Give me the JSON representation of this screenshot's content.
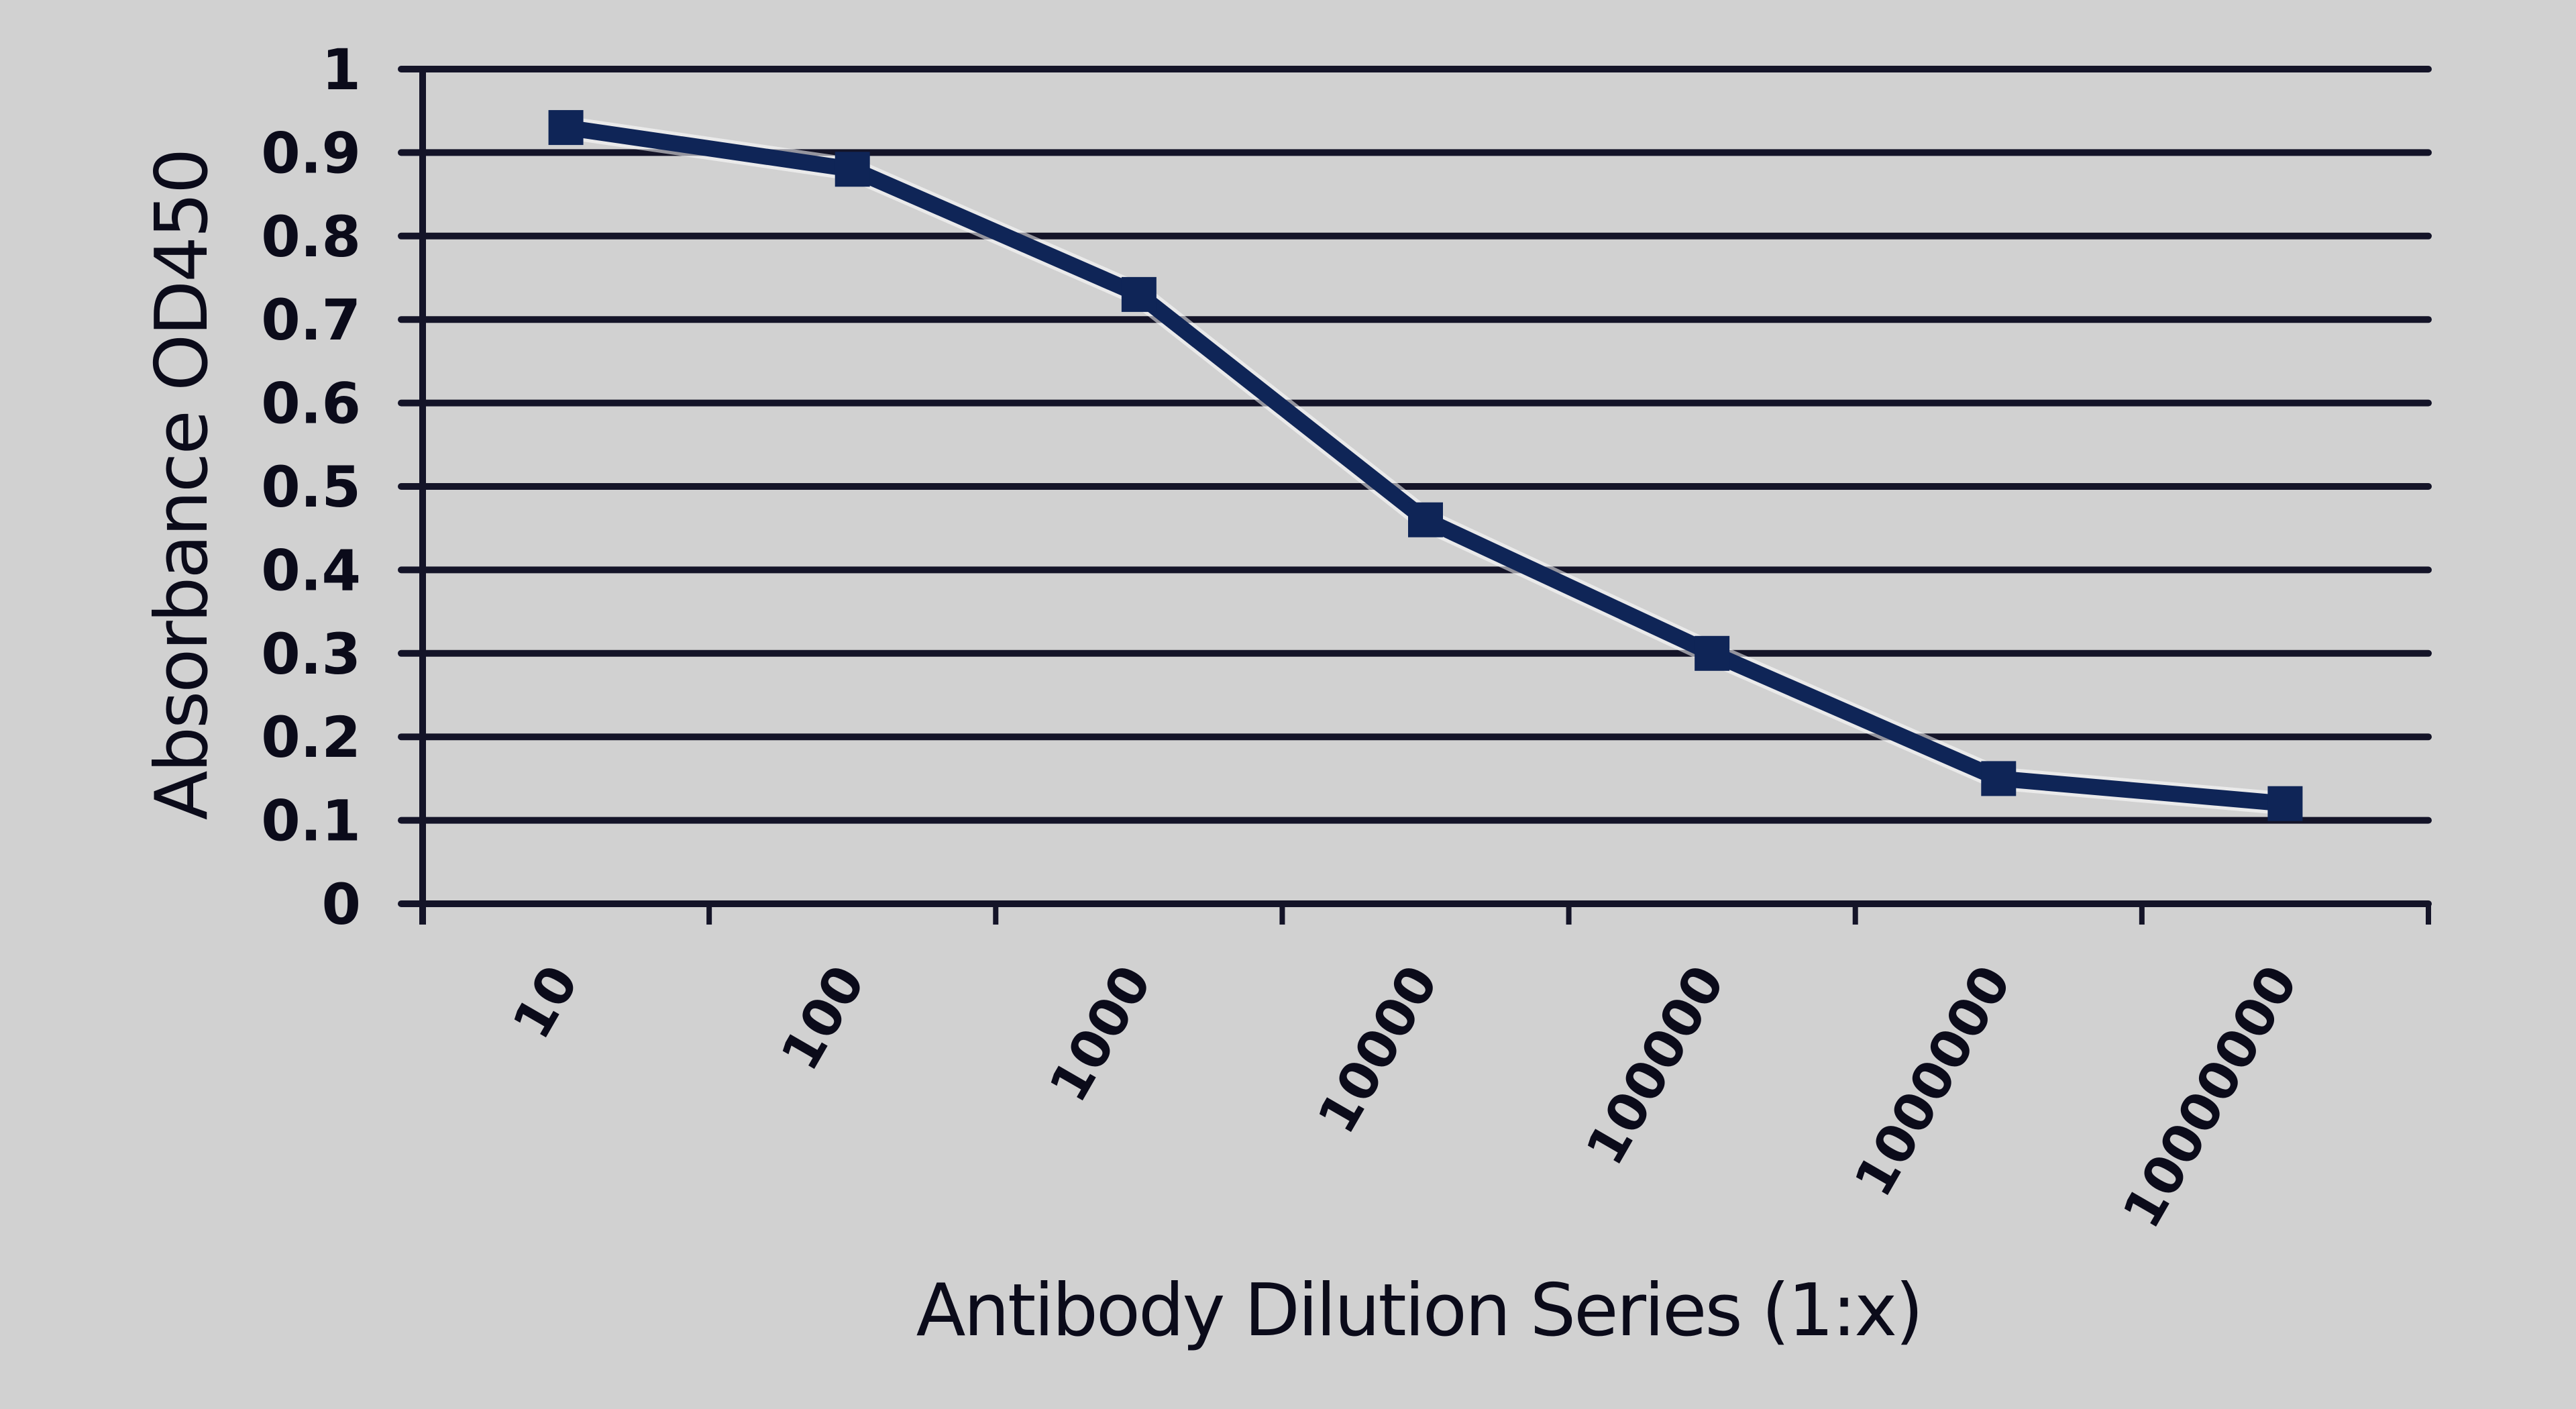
{
  "chart_data": {
    "type": "line",
    "title": "",
    "xlabel": "Antibody Dilution Series (1:x)",
    "ylabel": "Absorbance OD450",
    "categories": [
      "10",
      "100",
      "1000",
      "10000",
      "100000",
      "1000000",
      "10000000"
    ],
    "series": [
      {
        "name": "OD450",
        "values": [
          0.93,
          0.88,
          0.73,
          0.46,
          0.3,
          0.15,
          0.12
        ],
        "marker": "square",
        "color": "#0f2557"
      }
    ],
    "ylim": [
      0,
      1
    ],
    "yticks": [
      "0",
      "0.1",
      "0.2",
      "0.3",
      "0.4",
      "0.5",
      "0.6",
      "0.7",
      "0.8",
      "0.9",
      "1"
    ],
    "grid": true,
    "legend": "none"
  },
  "colors": {
    "background": "#d1d1d1",
    "gridline": "#141428",
    "series": "#0f2557",
    "text": "#0b0b1a"
  }
}
